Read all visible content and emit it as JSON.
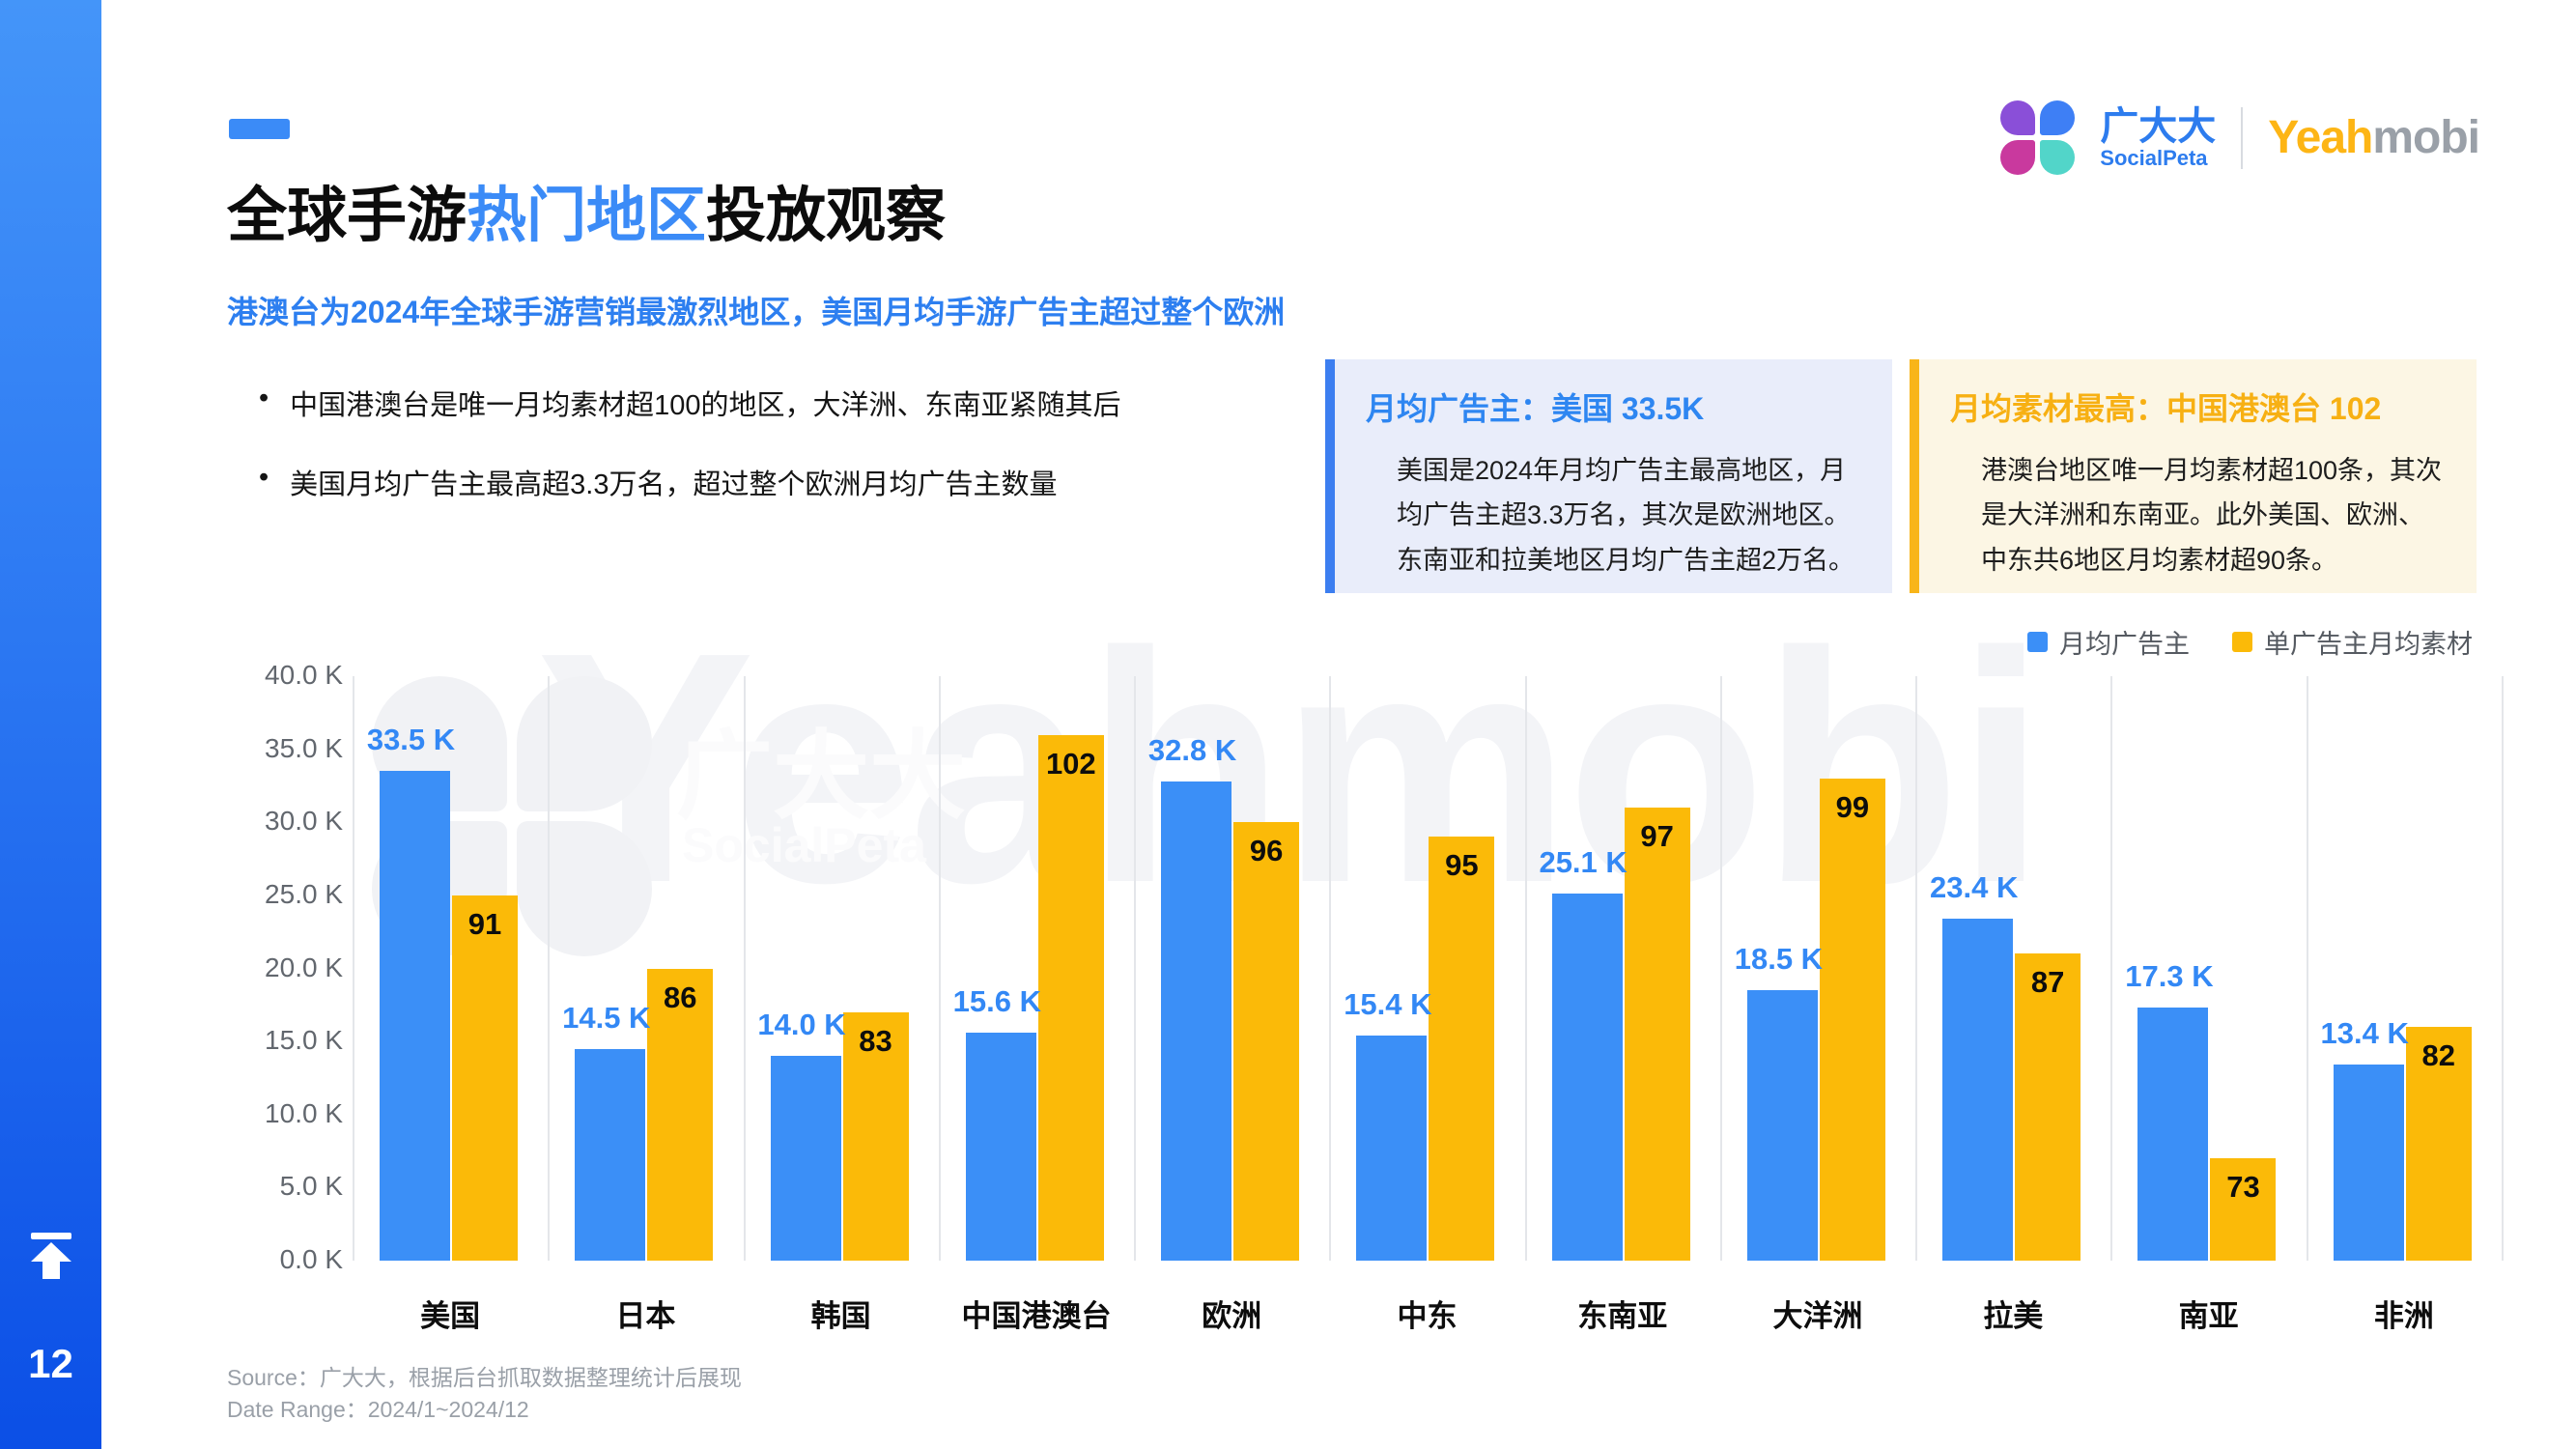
{
  "sidebar": {
    "page_number": "12"
  },
  "header": {
    "socialpeta_name": "广大大",
    "socialpeta_sub": "SocialPeta",
    "yeahmobi_part1": "Yeah",
    "yeahmobi_part2": "mobi"
  },
  "title": {
    "prefix": "全球手游",
    "highlight": "热门地区",
    "suffix": "投放观察"
  },
  "subtitle": "港澳台为2024年全球手游营销最激烈地区，美国月均手游广告主超过整个欧洲",
  "bullets": [
    "中国港澳台是唯一月均素材超100的地区，大洋洲、东南亚紧随其后",
    "美国月均广告主最高超3.3万名，超过整个欧洲月均广告主数量"
  ],
  "info_boxes": {
    "advertisers": {
      "title": "月均广告主：美国 33.5K",
      "body": "美国是2024年月均广告主最高地区，月均广告主超3.3万名，其次是欧洲地区。东南亚和拉美地区月均广告主超2万名。"
    },
    "creatives": {
      "title": "月均素材最高：中国港澳台 102",
      "body": "港澳台地区唯一月均素材超100条，其次是大洋洲和东南亚。此外美国、欧洲、中东共6地区月均素材超90条。"
    }
  },
  "watermark": {
    "ghost": "Yeahmobi",
    "name": "广大大",
    "sub": "SocialPeta"
  },
  "chart_data": {
    "type": "bar",
    "categories": [
      "美国",
      "日本",
      "韩国",
      "中国港澳台",
      "欧洲",
      "中东",
      "东南亚",
      "大洋洲",
      "拉美",
      "南亚",
      "非洲"
    ],
    "series": [
      {
        "name": "月均广告主",
        "color": "#3b8ff7",
        "unit": "K",
        "values": [
          33.5,
          14.5,
          14.0,
          15.6,
          32.8,
          15.4,
          25.1,
          18.5,
          23.4,
          17.3,
          13.4
        ],
        "labels": [
          "33.5 K",
          "14.5 K",
          "14.0 K",
          "15.6 K",
          "32.8 K",
          "15.4 K",
          "25.1 K",
          "18.5 K",
          "23.4 K",
          "17.3 K",
          "13.4 K"
        ]
      },
      {
        "name": "单广告主月均素材",
        "color": "#fbba08",
        "values": [
          91,
          86,
          83,
          102,
          96,
          95,
          97,
          99,
          87,
          73,
          82
        ],
        "labels": [
          "91",
          "86",
          "83",
          "102",
          "96",
          "95",
          "97",
          "99",
          "87",
          "73",
          "82"
        ]
      }
    ],
    "y_axis": {
      "min": 0,
      "max": 40,
      "unit": "K",
      "ticks": [
        "40.0 K",
        "35.0 K",
        "30.0 K",
        "25.0 K",
        "20.0 K",
        "15.0 K",
        "10.0 K",
        "5.0 K",
        "0.0 K"
      ]
    },
    "secondary_axis_estimate": {
      "min": 66,
      "max": 106,
      "visible": false
    },
    "legend_position": "top-right",
    "grid": "vertical",
    "title": "",
    "xlabel": "",
    "ylabel": ""
  },
  "footer": {
    "source": "Source：广大大，根据后台抓取数据整理统计后展现",
    "date_range": "Date Range：2024/1~2024/12"
  }
}
